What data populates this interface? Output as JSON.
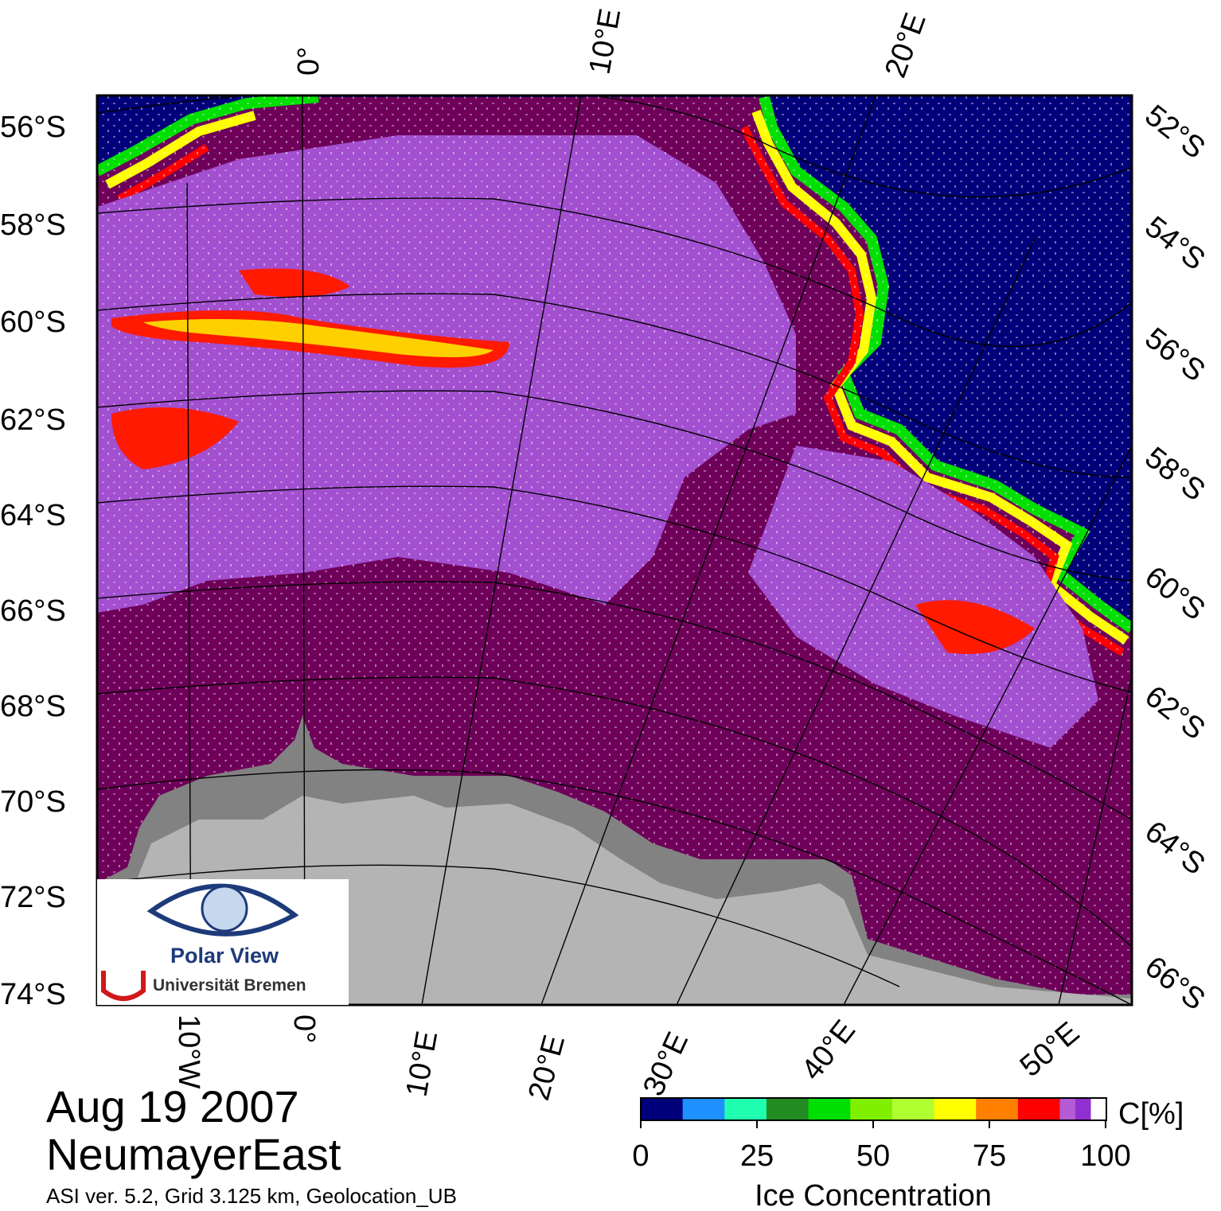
{
  "map": {
    "date": "Aug 19 2007",
    "region": "NeumayerEast",
    "footnote": "ASI ver. 5.2,  Grid 3.125 km, Geolocation_UB",
    "left_lat_labels": [
      "56°S",
      "58°S",
      "60°S",
      "62°S",
      "64°S",
      "66°S",
      "68°S",
      "70°S",
      "72°S",
      "74°S"
    ],
    "right_lat_labels": [
      "52°S",
      "54°S",
      "56°S",
      "58°S",
      "60°S",
      "62°S",
      "64°S",
      "66°S"
    ],
    "top_lon_labels": [
      "0°",
      "10°E",
      "20°E"
    ],
    "bottom_lon_labels": [
      "10°W",
      "0°",
      "10°E",
      "20°E",
      "30°E",
      "40°E",
      "50°E"
    ],
    "logo": {
      "title": "Polar View",
      "org": "Universität Bremen"
    },
    "colors": {
      "open_water": "#00007a",
      "ice_100": "#6e0059",
      "ice_95": "#8e2dd2",
      "ice_90": "#b45bd6",
      "land_ice": "#b4b4b4",
      "ice_shelf": "#828282"
    }
  },
  "colorbar": {
    "unit": "C[%]",
    "title": "Ice Concentration",
    "ticks": [
      "0",
      "25",
      "50",
      "75",
      "100"
    ],
    "bins": [
      "#00007a",
      "#1e90ff",
      "#20ffb0",
      "#228b22",
      "#00e000",
      "#80f000",
      "#b0ff30",
      "#ffff00",
      "#ff8000",
      "#ff0000",
      "#b45bd6",
      "#9030d0",
      "#ffffff"
    ]
  }
}
